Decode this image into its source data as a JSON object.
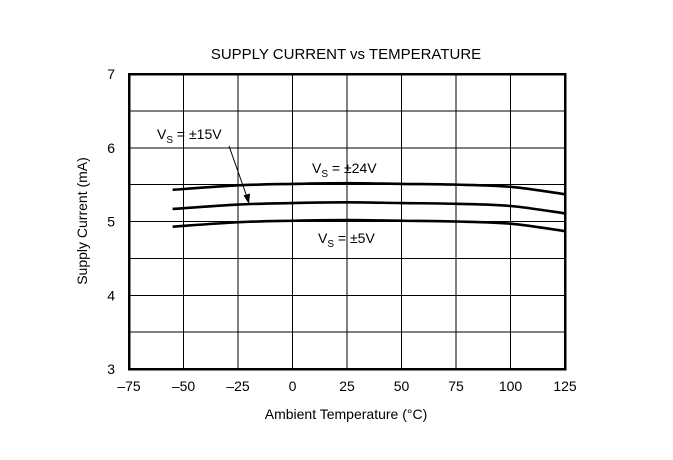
{
  "chart_data": {
    "type": "line",
    "title": "SUPPLY CURRENT vs TEMPERATURE",
    "xlabel": "Ambient Temperature (°C)",
    "ylabel": "Supply Current (mA)",
    "xlim": [
      -75,
      125
    ],
    "ylim": [
      3,
      7
    ],
    "x_ticks": [
      -75,
      -50,
      -25,
      0,
      25,
      50,
      75,
      100,
      125
    ],
    "x_tick_labels": [
      "–75",
      "–50",
      "–25",
      "0",
      "25",
      "50",
      "75",
      "100",
      "125"
    ],
    "y_ticks": [
      3,
      4,
      5,
      6,
      7
    ],
    "y_tick_labels": [
      "3",
      "4",
      "5",
      "6",
      "7"
    ],
    "grid": true,
    "series": [
      {
        "name": "VS = ±24V",
        "x": [
          -55,
          -25,
          0,
          25,
          50,
          75,
          100,
          125
        ],
        "y": [
          5.43,
          5.49,
          5.51,
          5.52,
          5.51,
          5.5,
          5.47,
          5.37
        ]
      },
      {
        "name": "VS = ±15V",
        "x": [
          -55,
          -25,
          0,
          25,
          50,
          75,
          100,
          125
        ],
        "y": [
          5.17,
          5.23,
          5.25,
          5.26,
          5.25,
          5.24,
          5.21,
          5.11
        ]
      },
      {
        "name": "VS = ±5V",
        "x": [
          -55,
          -25,
          0,
          25,
          50,
          75,
          100,
          125
        ],
        "y": [
          4.93,
          4.99,
          5.01,
          5.02,
          5.01,
          5.0,
          4.97,
          4.87
        ]
      }
    ],
    "annotations": [
      {
        "main": "V",
        "sub": "S",
        "rest": " = ±15V",
        "series": 1
      },
      {
        "main": "V",
        "sub": "S",
        "rest": " = ±24V",
        "series": 0
      },
      {
        "main": "V",
        "sub": "S",
        "rest": " = ±5V",
        "series": 2
      }
    ]
  }
}
